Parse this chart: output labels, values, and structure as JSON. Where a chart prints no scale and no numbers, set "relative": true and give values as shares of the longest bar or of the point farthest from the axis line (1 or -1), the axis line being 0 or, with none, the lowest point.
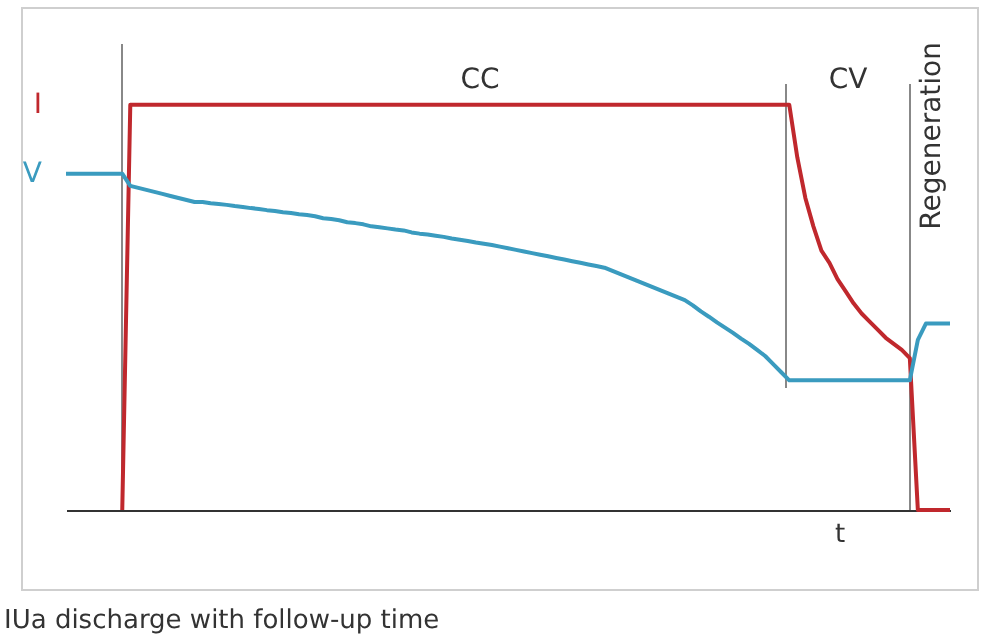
{
  "chart_data": {
    "type": "line",
    "relative": true,
    "xlabel": "t",
    "categories": [
      null,
      null,
      null,
      null,
      null,
      null,
      null,
      null,
      null,
      null,
      null,
      null,
      null,
      null,
      null,
      null,
      null,
      null,
      null,
      null,
      null,
      null,
      null,
      null,
      null,
      null,
      null,
      null,
      null,
      null,
      null,
      null,
      null,
      null,
      null,
      null,
      null,
      null,
      null,
      null,
      null,
      null,
      null,
      null,
      null,
      null,
      null,
      null,
      null,
      null,
      null,
      null,
      null,
      null,
      null,
      null,
      null,
      null,
      null,
      null,
      null,
      null,
      null,
      null,
      null,
      null,
      null,
      null,
      null,
      null,
      null,
      null,
      null,
      null,
      null,
      null,
      null,
      null,
      null,
      null,
      null,
      null,
      null,
      null,
      null,
      null,
      null,
      null,
      null,
      null,
      null,
      null,
      null,
      null,
      null,
      null,
      null,
      null,
      null,
      null,
      null,
      null,
      null,
      null,
      null,
      null,
      null,
      null,
      null,
      null,
      null
    ],
    "series": [
      {
        "name": "I",
        "color": "#c0282d",
        "values": [
          null,
          null,
          null,
          null,
          null,
          null,
          null,
          0,
          1,
          1,
          1,
          1,
          1,
          1,
          1,
          1,
          1,
          1,
          1,
          1,
          1,
          1,
          1,
          1,
          1,
          1,
          1,
          1,
          1,
          1,
          1,
          1,
          1,
          1,
          1,
          1,
          1,
          1,
          1,
          1,
          1,
          1,
          1,
          1,
          1,
          1,
          1,
          1,
          1,
          1,
          1,
          1,
          1,
          1,
          1,
          1,
          1,
          1,
          1,
          1,
          1,
          1,
          1,
          1,
          1,
          1,
          1,
          1,
          1,
          1,
          1,
          1,
          1,
          1,
          1,
          1,
          1,
          1,
          1,
          1,
          1,
          1,
          1,
          1,
          1,
          1,
          1,
          1,
          1,
          1,
          1,
          0.87,
          0.77,
          0.7,
          0.64,
          0.61,
          0.57,
          0.54,
          0.51,
          0.485,
          0.465,
          0.445,
          0.425,
          0.41,
          0.395,
          0.375,
          0,
          0,
          0,
          0,
          0
        ]
      },
      {
        "name": "V",
        "color": "#3a9bbf",
        "values": [
          0.83,
          0.83,
          0.83,
          0.83,
          0.83,
          0.83,
          0.83,
          0.83,
          0.8,
          0.795,
          0.79,
          0.785,
          0.78,
          0.775,
          0.77,
          0.765,
          0.76,
          0.76,
          0.757,
          0.755,
          0.753,
          0.75,
          0.748,
          0.745,
          0.743,
          0.74,
          0.738,
          0.735,
          0.733,
          0.73,
          0.728,
          0.725,
          0.72,
          0.718,
          0.715,
          0.71,
          0.708,
          0.705,
          0.7,
          0.698,
          0.695,
          0.692,
          0.69,
          0.685,
          0.682,
          0.68,
          0.677,
          0.674,
          0.67,
          0.667,
          0.664,
          0.66,
          0.657,
          0.654,
          0.65,
          0.646,
          0.642,
          0.638,
          0.634,
          0.63,
          0.626,
          0.622,
          0.618,
          0.614,
          0.61,
          0.606,
          0.602,
          0.598,
          0.59,
          0.582,
          0.574,
          0.566,
          0.558,
          0.55,
          0.542,
          0.534,
          0.526,
          0.518,
          0.505,
          0.49,
          0.477,
          0.463,
          0.45,
          0.437,
          0.423,
          0.41,
          0.395,
          0.38,
          0.36,
          0.34,
          0.32,
          0.32,
          0.32,
          0.32,
          0.32,
          0.32,
          0.32,
          0.32,
          0.32,
          0.32,
          0.32,
          0.32,
          0.32,
          0.32,
          0.32,
          0.32,
          0.42,
          0.46,
          0.46,
          0.46,
          0.46
        ]
      }
    ],
    "annotations": [
      "CC",
      "CV",
      "Regeneration",
      "IUa discharge with follow-up time"
    ]
  }
}
